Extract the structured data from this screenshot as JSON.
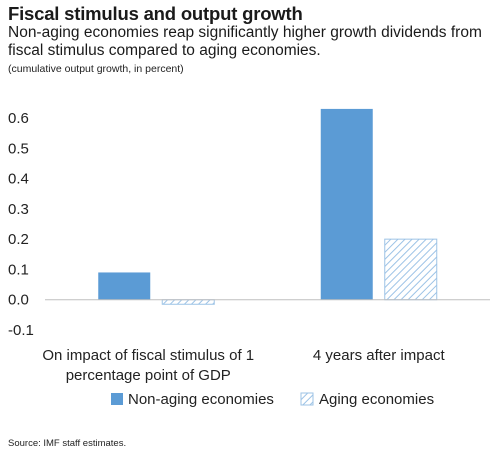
{
  "header": {
    "title": "Fiscal stimulus and output growth",
    "subtitle": "Non-aging economies reap significantly higher growth dividends from fiscal stimulus compared to aging economies.",
    "note": "(cumulative output growth, in percent)"
  },
  "source": "Source: IMF staff estimates.",
  "colors": {
    "non_aging": "#5b9bd5",
    "aging_stroke": "#9dc3e6",
    "axis": "#bfbfbf"
  },
  "chart_data": {
    "type": "bar",
    "categories": [
      [
        "On impact of fiscal stimulus of 1",
        "percentage point of GDP"
      ],
      [
        "4 years after impact"
      ]
    ],
    "series": [
      {
        "name": "Non-aging economies",
        "values": [
          0.09,
          0.63
        ],
        "pattern": "solid"
      },
      {
        "name": "Aging economies",
        "values": [
          -0.015,
          0.2
        ],
        "pattern": "hatched"
      }
    ],
    "yticks": [
      "0.6",
      "0.5",
      "0.4",
      "0.3",
      "0.2",
      "0.1",
      "0.0",
      "-0.1"
    ],
    "ylim": [
      -0.1,
      0.6
    ],
    "grid": false,
    "legend": "bottom"
  }
}
